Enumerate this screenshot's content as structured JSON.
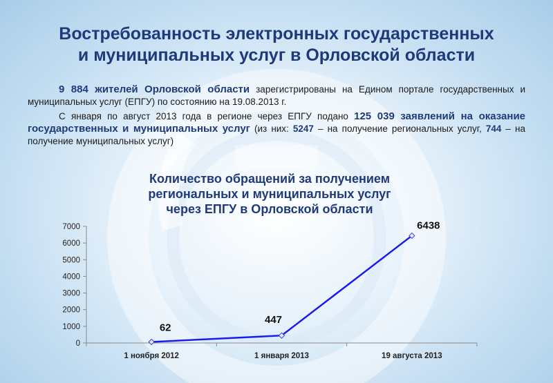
{
  "title": {
    "line1": "Востребованность электронных государственных",
    "line2": "и муниципальных услуг в Орловской области"
  },
  "paragraph1": {
    "highlight": "9 884 жителей Орловской области",
    "text": " зарегистрированы на Едином портале государственных и муниципальных услуг (ЕПГУ) по состоянию на 19.08.2013 г."
  },
  "paragraph2": {
    "text_a": "С января по август 2013 года в регионе через ЕПГУ подано ",
    "highlight": "125 039 заявлений на оказание государственных и муниципальных услуг",
    "text_b": " (из них: ",
    "num1": "5247",
    "text_c": " – на получение региональных услуг,  ",
    "num2": "744",
    "text_d": " – на получение муниципальных услуг)"
  },
  "chart_title": {
    "line1": "Количество обращений за получением",
    "line2": "региональных и муниципальных услуг",
    "line3": "через ЕПГУ в Орловской области"
  },
  "chart_data": {
    "type": "line",
    "title": "Количество обращений за получением региональных и муниципальных услуг через ЕПГУ в Орловской области",
    "categories": [
      "1 ноября 2012",
      "1 января 2013",
      "19 августа 2013"
    ],
    "series": [
      {
        "values": [
          62,
          447,
          6438
        ],
        "color": "#1a1aee"
      }
    ],
    "data_labels": [
      "62",
      "447",
      "6438"
    ],
    "ylim": [
      0,
      7000
    ],
    "yticks": [
      0,
      1000,
      2000,
      3000,
      4000,
      5000,
      6000,
      7000
    ],
    "xlabel": "",
    "ylabel": "",
    "grid": false,
    "legend": "none"
  }
}
